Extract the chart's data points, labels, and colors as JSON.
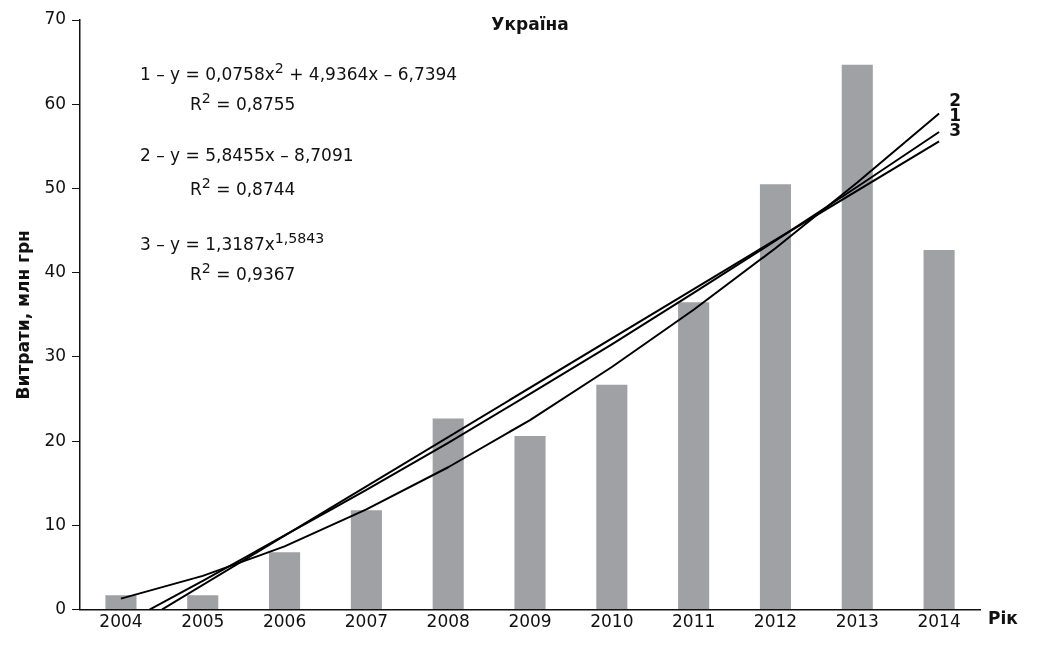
{
  "chart_data": {
    "type": "bar",
    "title": "Україна",
    "xlabel": "Рік",
    "ylabel": "Витрати, млн грн",
    "x": [
      2004,
      2005,
      2006,
      2007,
      2008,
      2009,
      2010,
      2011,
      2012,
      2013,
      2014
    ],
    "series": [
      {
        "color": "#a0a1a4",
        "values": [
          1.7,
          1.7,
          6.8,
          11.8,
          22.7,
          20.6,
          26.7,
          36.5,
          50.5,
          64.7,
          42.7
        ]
      },
      {
        "type": "line",
        "color": "#000000",
        "x": [
          2004,
          2005,
          2006,
          2007,
          2008,
          2009,
          2010,
          2011,
          2012,
          2013,
          2014
        ],
        "values": [
          1.3,
          4.0,
          7.5,
          11.9,
          16.9,
          22.5,
          28.8,
          35.6,
          42.9,
          50.7,
          58.9
        ]
      },
      {
        "type": "line",
        "color": "#000000",
        "x": [
          2004.5,
          2014
        ],
        "values": [
          0,
          55.6
        ]
      },
      {
        "type": "line",
        "color": "#000000",
        "x": [
          2004.35,
          2005,
          2006,
          2007,
          2008,
          2009,
          2010,
          2011,
          2012,
          2013,
          2014
        ],
        "values": [
          0,
          3.4,
          8.8,
          14.2,
          19.8,
          25.6,
          31.5,
          37.6,
          43.8,
          50.2,
          56.7
        ]
      }
    ],
    "xlim": [
      2003.5,
      2014.5
    ],
    "xticks": [
      2004,
      2005,
      2006,
      2007,
      2008,
      2009,
      2010,
      2011,
      2012,
      2013,
      2014
    ],
    "ylim": [
      0,
      70
    ],
    "yticks": [
      0,
      10,
      20,
      30,
      40,
      50,
      60,
      70
    ],
    "grid": false,
    "legend": false,
    "marker": "none",
    "line_style": "solid",
    "annotations": [
      "1 – y = 0,0758x$^{2}$ + 4,9364x – 6,7394",
      "R$^{2}$ = 0,8755",
      "2 – y = 5,8455x – 8,7091",
      "R$^{2}$ = 0,8744",
      "3 – y = 1,3187x$^{1,5843}$",
      "R$^{2}$ = 0,9367",
      "2",
      "1",
      "3"
    ]
  }
}
